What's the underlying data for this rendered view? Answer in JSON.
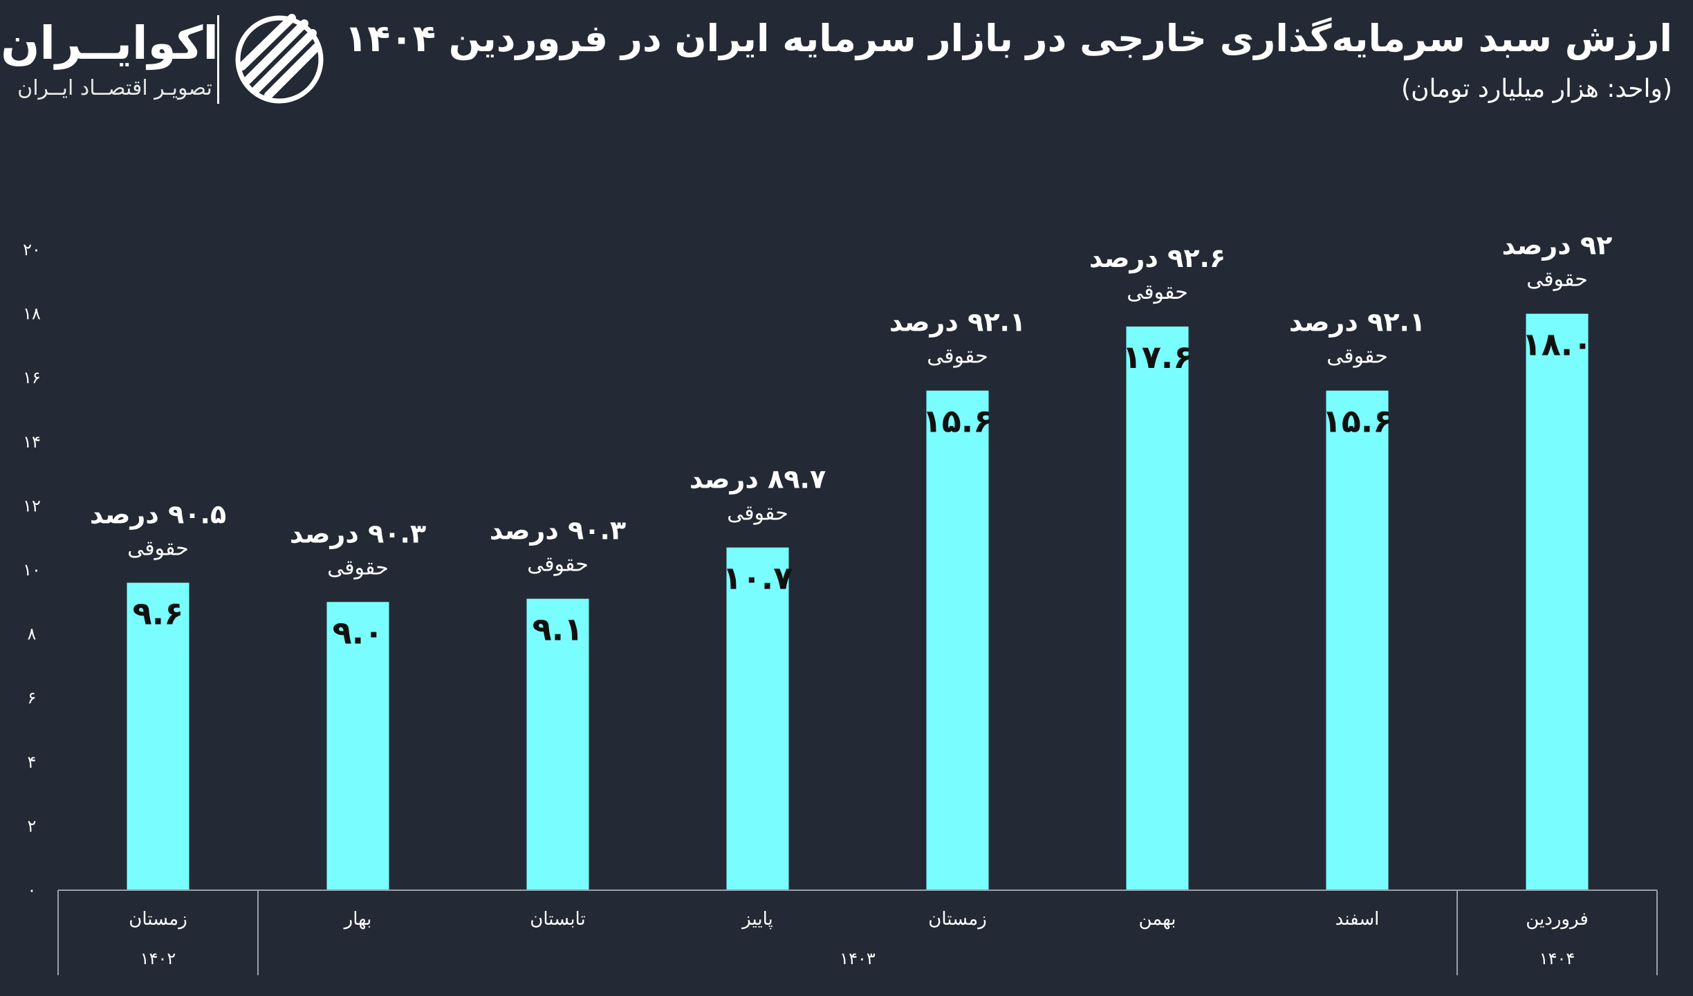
{
  "title": "ارزش سبد سرمایه‌گذاری خارجی در بازار سرمایه ایران در فروردین ۱۴۰۴",
  "subtitle": "(واحد: هزار میلیارد تومان)",
  "brand": {
    "name": "اکوایــران",
    "tagline": "تصویـر اقتصــاد ایــران"
  },
  "colors": {
    "background": "#232a35",
    "bar": "#7afdfe",
    "text": "#ffffff",
    "bar_label": "#111111",
    "axis": "#9aa0a8"
  },
  "chart_data": {
    "type": "bar",
    "ylim": [
      0,
      20
    ],
    "yticks": [
      "۰",
      "۲",
      "۴",
      "۶",
      "۸",
      "۱۰",
      "۱۲",
      "۱۴",
      "۱۶",
      "۱۸",
      "۲۰"
    ],
    "ytick_values": [
      0,
      2,
      4,
      6,
      8,
      10,
      12,
      14,
      16,
      18,
      20
    ],
    "categories": [
      "زمستان",
      "بهار",
      "تابستان",
      "پاییز",
      "زمستان",
      "بهمن",
      "اسفند",
      "فروردین"
    ],
    "values": [
      9.6,
      9.0,
      9.1,
      10.7,
      15.6,
      17.6,
      15.6,
      18.0
    ],
    "value_labels": [
      "۹.۶",
      "۹.۰",
      "۹.۱",
      "۱۰.۷",
      "۱۵.۶",
      "۱۷.۶",
      "۱۵.۶",
      "۱۸.۰"
    ],
    "percent_labels": [
      "۹۰.۵ درصد",
      "۹۰.۳ درصد",
      "۹۰.۳ درصد",
      "۸۹.۷ درصد",
      "۹۲.۱ درصد",
      "۹۲.۶ درصد",
      "۹۲.۱ درصد",
      "۹۲ درصد"
    ],
    "note_label": "حقوقی",
    "year_groups": [
      {
        "label": "۱۴۰۲",
        "start": 0,
        "end": 0
      },
      {
        "label": "۱۴۰۳",
        "start": 1,
        "end": 6
      },
      {
        "label": "۱۴۰۴",
        "start": 7,
        "end": 7
      }
    ],
    "grid": false
  }
}
